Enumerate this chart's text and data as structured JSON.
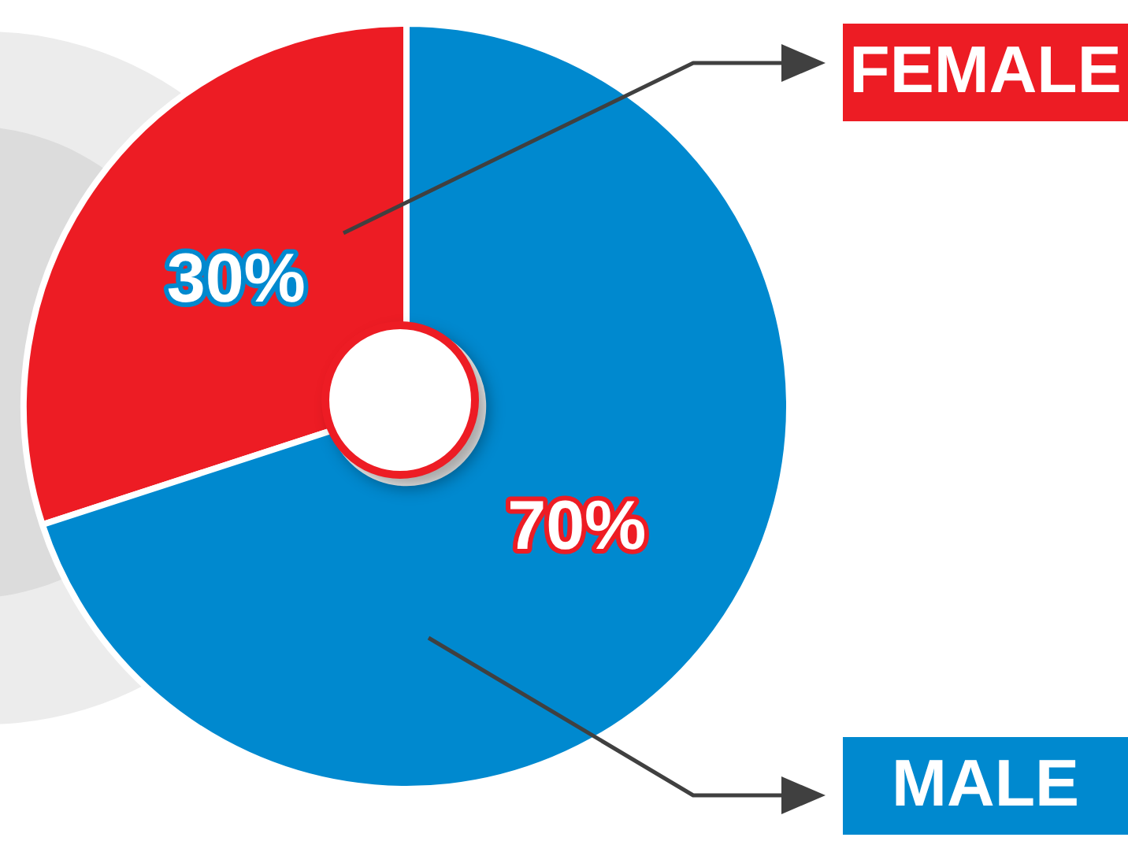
{
  "chart_data": {
    "type": "donut",
    "categories": [
      "FEMALE",
      "MALE"
    ],
    "values": [
      30,
      70
    ],
    "colors": [
      "#ed1c24",
      "#0089cf"
    ],
    "value_labels": [
      "30%",
      "70%"
    ]
  }
}
